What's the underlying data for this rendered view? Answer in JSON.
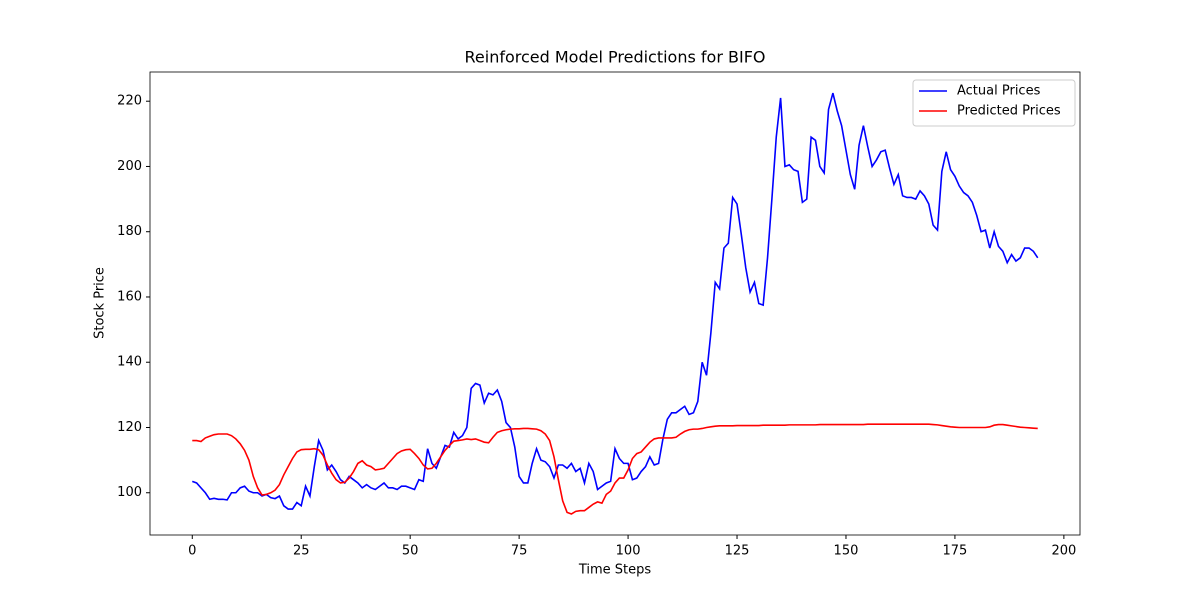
{
  "chart_data": {
    "type": "line",
    "title": "Reinforced Model Predictions for BIFO",
    "x_label": "Time Steps",
    "y_label": "Stock Price",
    "x": [
      0,
      1,
      2,
      3,
      4,
      5,
      6,
      7,
      8,
      9,
      10,
      11,
      12,
      13,
      14,
      15,
      16,
      17,
      18,
      19,
      20,
      21,
      22,
      23,
      24,
      25,
      26,
      27,
      28,
      29,
      30,
      31,
      32,
      33,
      34,
      35,
      36,
      37,
      38,
      39,
      40,
      41,
      42,
      43,
      44,
      45,
      46,
      47,
      48,
      49,
      50,
      51,
      52,
      53,
      54,
      55,
      56,
      57,
      58,
      59,
      60,
      61,
      62,
      63,
      64,
      65,
      66,
      67,
      68,
      69,
      70,
      71,
      72,
      73,
      74,
      75,
      76,
      77,
      78,
      79,
      80,
      81,
      82,
      83,
      84,
      85,
      86,
      87,
      88,
      89,
      90,
      91,
      92,
      93,
      94,
      95,
      96,
      97,
      98,
      99,
      100,
      101,
      102,
      103,
      104,
      105,
      106,
      107,
      108,
      109,
      110,
      111,
      112,
      113,
      114,
      115,
      116,
      117,
      118,
      119,
      120,
      121,
      122,
      123,
      124,
      125,
      126,
      127,
      128,
      129,
      130,
      131,
      132,
      133,
      134,
      135,
      136,
      137,
      138,
      139,
      140,
      141,
      142,
      143,
      144,
      145,
      146,
      147,
      148,
      149,
      150,
      151,
      152,
      153,
      154,
      155,
      156,
      157,
      158,
      159,
      160,
      161,
      162,
      163,
      164,
      165,
      166,
      167,
      168,
      169,
      170,
      171,
      172,
      173,
      174,
      175,
      176,
      177,
      178,
      179,
      180,
      181,
      182,
      183,
      184,
      185,
      186,
      187,
      188,
      189,
      190,
      191,
      192,
      193,
      194
    ],
    "series": [
      {
        "name": "Actual Prices",
        "color": "#0000ff",
        "values": [
          103.5,
          103,
          101.5,
          100,
          98,
          98.3,
          98,
          98,
          97.8,
          100,
          100,
          101.5,
          102,
          100.5,
          100,
          100,
          99,
          99.5,
          98.5,
          98.2,
          99,
          96,
          95,
          95,
          97,
          96,
          102,
          99,
          108,
          116,
          113,
          107,
          108.5,
          106.5,
          104,
          103,
          105,
          104,
          103,
          101.5,
          102.5,
          101.5,
          101,
          102,
          103,
          101.5,
          101.5,
          101,
          102,
          102,
          101.5,
          101,
          104,
          103.5,
          113.5,
          109,
          107.5,
          111,
          114.5,
          114,
          118.5,
          116.5,
          117.5,
          120,
          132,
          133.5,
          133,
          127.5,
          130.5,
          130,
          131.5,
          128,
          121.5,
          120,
          114,
          105,
          103,
          103,
          109,
          113.5,
          110,
          109.5,
          108,
          104.5,
          108.5,
          108.5,
          107.5,
          109,
          106.5,
          107.5,
          103,
          109,
          106.5,
          101,
          102,
          103,
          103.5,
          113.5,
          110.5,
          109,
          109,
          104,
          104.5,
          106.5,
          108,
          111,
          108.5,
          109,
          116.5,
          122.5,
          124.5,
          124.5,
          125.5,
          126.5,
          124,
          124.5,
          128,
          140,
          136,
          149,
          164.5,
          162.5,
          175,
          176.5,
          190.5,
          188.5,
          179,
          169,
          161.5,
          164.5,
          158,
          157.5,
          172,
          190,
          209,
          221,
          200,
          200.5,
          199,
          198.5,
          189,
          190,
          209,
          208,
          200,
          198,
          217.5,
          222.5,
          217,
          212.5,
          205,
          197.5,
          193,
          206.5,
          212.5,
          206,
          200,
          202,
          204.5,
          205,
          199.5,
          194.5,
          197.5,
          191,
          190.5,
          190.5,
          190,
          192.5,
          191,
          188.5,
          182,
          180.5,
          198.5,
          204.5,
          199,
          197,
          194,
          192,
          191,
          189,
          185,
          180,
          180.5,
          175,
          180,
          175.5,
          174,
          170.5,
          173,
          171,
          172,
          175,
          175,
          174,
          172
        ]
      },
      {
        "name": "Predicted Prices",
        "color": "#ff0000",
        "values": [
          116,
          116,
          115.7,
          116.8,
          117.3,
          117.8,
          118,
          118,
          118,
          117.5,
          116.5,
          115,
          113,
          110,
          105,
          101.5,
          99.3,
          99.5,
          100,
          100.8,
          102.5,
          105.5,
          108,
          110.5,
          112.5,
          113.2,
          113.3,
          113.3,
          113.5,
          113.2,
          111.5,
          108.5,
          106,
          104,
          103,
          103.2,
          104.5,
          106.5,
          109,
          109.8,
          108.5,
          108,
          107,
          107.2,
          107.5,
          109,
          110.5,
          112,
          112.8,
          113.2,
          113.3,
          112,
          110.5,
          108.5,
          107.3,
          107.5,
          109,
          111,
          113,
          114.5,
          115.8,
          116,
          116.2,
          116.5,
          116.3,
          116.5,
          116,
          115.5,
          115.3,
          117,
          118.5,
          119,
          119.3,
          119.5,
          119.6,
          119.6,
          119.7,
          119.7,
          119.6,
          119.5,
          119,
          118,
          116,
          111,
          104,
          97.5,
          94,
          93.5,
          94.3,
          94.5,
          94.5,
          95.5,
          96.5,
          97.2,
          96.8,
          99.5,
          100.5,
          103,
          104.5,
          104.5,
          107,
          110.5,
          112,
          112.5,
          114,
          115.5,
          116.5,
          116.8,
          116.8,
          116.8,
          116.8,
          117,
          118,
          118.8,
          119.3,
          119.5,
          119.5,
          119.7,
          120,
          120.2,
          120.4,
          120.5,
          120.5,
          120.5,
          120.5,
          120.6,
          120.6,
          120.6,
          120.6,
          120.6,
          120.6,
          120.7,
          120.7,
          120.7,
          120.7,
          120.7,
          120.7,
          120.8,
          120.8,
          120.8,
          120.8,
          120.8,
          120.8,
          120.8,
          120.9,
          120.9,
          120.9,
          120.9,
          120.9,
          120.9,
          120.9,
          120.9,
          120.9,
          120.9,
          120.9,
          121,
          121,
          121,
          121,
          121,
          121,
          121,
          121,
          121,
          121,
          121,
          121,
          121,
          121,
          121,
          120.9,
          120.8,
          120.6,
          120.4,
          120.2,
          120.1,
          120,
          120,
          120,
          120,
          120,
          120,
          120,
          120.2,
          120.7,
          120.9,
          120.9,
          120.7,
          120.5,
          120.3,
          120.1,
          120,
          119.9,
          119.8,
          119.7
        ]
      }
    ],
    "xlim": [
      -9.7,
      203.7
    ],
    "ylim": [
      87.05,
      228.95
    ],
    "xticks": [
      0,
      25,
      50,
      75,
      100,
      125,
      150,
      175,
      200
    ],
    "yticks": [
      100,
      120,
      140,
      160,
      180,
      200,
      220
    ],
    "grid": false,
    "legend": "upper right"
  }
}
